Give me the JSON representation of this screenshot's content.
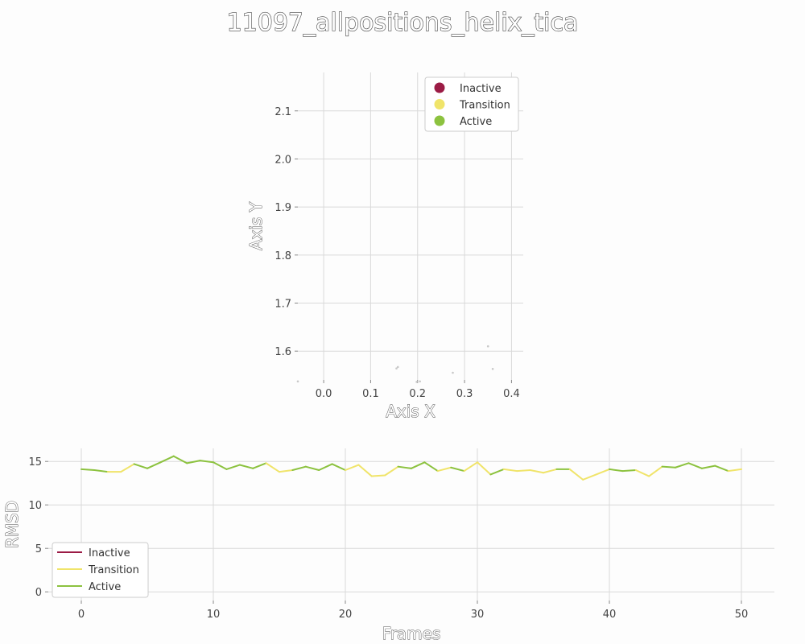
{
  "figure_title": "11097_allpositions_helix_tica",
  "colors": {
    "inactive": "#9b1b45",
    "transition": "#f0e46a",
    "active": "#8cc23f"
  },
  "chart_data": [
    {
      "type": "scatter",
      "xlabel": "Axis X",
      "ylabel": "Axis Y",
      "xlim": [
        -0.055,
        0.425
      ],
      "ylim": [
        1.54,
        2.18
      ],
      "xticks": [
        "0.0",
        "0.1",
        "0.2",
        "0.3",
        "0.4"
      ],
      "xtick_values": [
        0.0,
        0.1,
        0.2,
        0.3,
        0.4
      ],
      "yticks": [
        "1.6",
        "1.7",
        "1.8",
        "1.9",
        "2.0",
        "2.1"
      ],
      "ytick_values": [
        1.6,
        1.7,
        1.8,
        1.9,
        2.0,
        2.1
      ],
      "grid": true,
      "legend_position": "top-right",
      "legend": [
        {
          "label": "Inactive",
          "color_key": "inactive"
        },
        {
          "label": "Transition",
          "color_key": "transition"
        },
        {
          "label": "Active",
          "color_key": "active"
        }
      ],
      "points": [
        {
          "x": 0.155,
          "y": 1.564
        },
        {
          "x": 0.158,
          "y": 1.567
        },
        {
          "x": 0.198,
          "y": 1.536
        },
        {
          "x": 0.205,
          "y": 1.537
        },
        {
          "x": 0.275,
          "y": 1.555
        },
        {
          "x": 0.35,
          "y": 1.61
        },
        {
          "x": 0.36,
          "y": 1.563
        },
        {
          "x": -0.055,
          "y": 1.537
        }
      ]
    },
    {
      "type": "line",
      "xlabel": "Frames",
      "ylabel": "RMSD",
      "xlim": [
        -2.5,
        52.5
      ],
      "ylim": [
        -1,
        16.5
      ],
      "xticks": [
        "0",
        "10",
        "20",
        "30",
        "40",
        "50"
      ],
      "xtick_values": [
        0,
        10,
        20,
        30,
        40,
        50
      ],
      "yticks": [
        "0",
        "5",
        "10",
        "15"
      ],
      "ytick_values": [
        0,
        5,
        10,
        15
      ],
      "grid": true,
      "legend_position": "bottom-left",
      "legend": [
        {
          "label": "Inactive",
          "color_key": "inactive"
        },
        {
          "label": "Transition",
          "color_key": "transition"
        },
        {
          "label": "Active",
          "color_key": "active"
        }
      ],
      "x": [
        0,
        1,
        2,
        3,
        4,
        5,
        6,
        7,
        8,
        9,
        10,
        11,
        12,
        13,
        14,
        15,
        16,
        17,
        18,
        19,
        20,
        21,
        22,
        23,
        24,
        25,
        26,
        27,
        28,
        29,
        30,
        31,
        32,
        33,
        34,
        35,
        36,
        37,
        38,
        39,
        40,
        41,
        42,
        43,
        44,
        45,
        46,
        47,
        48,
        49,
        50
      ],
      "values": [
        14.1,
        14.0,
        13.8,
        13.8,
        14.7,
        14.2,
        14.9,
        15.6,
        14.8,
        15.1,
        14.9,
        14.1,
        14.6,
        14.2,
        14.8,
        13.8,
        14.0,
        14.4,
        14.0,
        14.7,
        14.0,
        14.6,
        13.3,
        13.4,
        14.4,
        14.2,
        14.9,
        13.9,
        14.3,
        13.9,
        14.9,
        13.5,
        14.1,
        13.9,
        14.0,
        13.7,
        14.1,
        14.1,
        12.9,
        13.5,
        14.1,
        13.9,
        14.0,
        13.3,
        14.4,
        14.3,
        14.8,
        14.2,
        14.5,
        13.9,
        14.1
      ],
      "segment_states": [
        "active",
        "active",
        "transition",
        "transition",
        "active",
        "active",
        "active",
        "active",
        "active",
        "active",
        "active",
        "active",
        "active",
        "active",
        "transition",
        "transition",
        "active",
        "active",
        "active",
        "active",
        "transition",
        "transition",
        "transition",
        "transition",
        "active",
        "active",
        "active",
        "transition",
        "active",
        "transition",
        "transition",
        "active",
        "transition",
        "transition",
        "transition",
        "transition",
        "active",
        "transition",
        "transition",
        "transition",
        "active",
        "active",
        "transition",
        "transition",
        "active",
        "active",
        "active",
        "active",
        "active",
        "transition"
      ]
    }
  ]
}
